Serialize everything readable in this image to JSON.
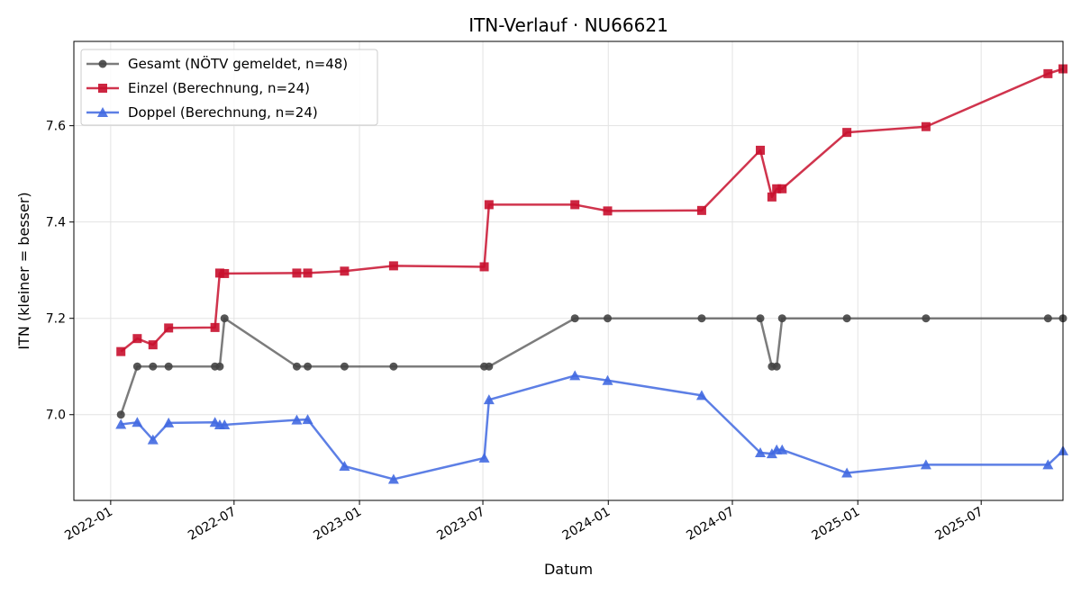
{
  "chart_data": {
    "type": "line",
    "title": "ITN-Verlauf · NU66621",
    "xlabel": "Datum",
    "ylabel": "ITN  (kleiner = besser)",
    "xlim": [
      "2021-11-08",
      "2025-10-29"
    ],
    "ylim": [
      6.822,
      7.775
    ],
    "grid": true,
    "legend_position": "top-left",
    "x_ticks": [
      "2022-01",
      "2022-07",
      "2023-01",
      "2023-07",
      "2024-01",
      "2024-07",
      "2025-01",
      "2025-07"
    ],
    "y_ticks": [
      7.0,
      7.2,
      7.4,
      7.6
    ],
    "series": [
      {
        "name": "Gesamt (NÖTV gemeldet, n=48)",
        "color": "#444444",
        "marker": "circle",
        "points": [
          [
            "2022-01-16",
            7.0
          ],
          [
            "2022-02-09",
            7.1
          ],
          [
            "2022-03-04",
            7.1
          ],
          [
            "2022-03-27",
            7.1
          ],
          [
            "2022-06-03",
            7.1
          ],
          [
            "2022-06-10",
            7.1
          ],
          [
            "2022-06-17",
            7.2
          ],
          [
            "2022-10-01",
            7.1
          ],
          [
            "2022-10-17",
            7.1
          ],
          [
            "2022-12-10",
            7.1
          ],
          [
            "2023-02-20",
            7.1
          ],
          [
            "2023-07-03",
            7.1
          ],
          [
            "2023-07-10",
            7.1
          ],
          [
            "2023-11-13",
            7.2
          ],
          [
            "2023-12-31",
            7.2
          ],
          [
            "2024-05-17",
            7.2
          ],
          [
            "2024-08-11",
            7.2
          ],
          [
            "2024-08-28",
            7.1
          ],
          [
            "2024-09-04",
            7.1
          ],
          [
            "2024-09-12",
            7.2
          ],
          [
            "2024-12-16",
            7.2
          ],
          [
            "2025-04-11",
            7.2
          ],
          [
            "2025-10-07",
            7.2
          ],
          [
            "2025-10-29",
            7.2
          ]
        ]
      },
      {
        "name": "Einzel (Berechnung, n=24)",
        "color": "#c8102e",
        "marker": "square",
        "points": [
          [
            "2022-01-16",
            7.131
          ],
          [
            "2022-02-09",
            7.158
          ],
          [
            "2022-03-04",
            7.145
          ],
          [
            "2022-03-27",
            7.18
          ],
          [
            "2022-06-03",
            7.181
          ],
          [
            "2022-06-10",
            7.294
          ],
          [
            "2022-06-17",
            7.293
          ],
          [
            "2022-10-01",
            7.294
          ],
          [
            "2022-10-17",
            7.294
          ],
          [
            "2022-12-10",
            7.298
          ],
          [
            "2023-02-20",
            7.309
          ],
          [
            "2023-07-03",
            7.307
          ],
          [
            "2023-07-10",
            7.436
          ],
          [
            "2023-11-13",
            7.436
          ],
          [
            "2023-12-31",
            7.423
          ],
          [
            "2024-05-17",
            7.424
          ],
          [
            "2024-08-11",
            7.549
          ],
          [
            "2024-08-28",
            7.452
          ],
          [
            "2024-09-04",
            7.469
          ],
          [
            "2024-09-12",
            7.469
          ],
          [
            "2024-12-16",
            7.586
          ],
          [
            "2025-04-11",
            7.598
          ],
          [
            "2025-10-07",
            7.708
          ],
          [
            "2025-10-29",
            7.718
          ]
        ]
      },
      {
        "name": "Doppel (Berechnung, n=24)",
        "color": "#4169e1",
        "marker": "triangle",
        "points": [
          [
            "2022-01-16",
            6.98
          ],
          [
            "2022-02-09",
            6.984
          ],
          [
            "2022-03-04",
            6.948
          ],
          [
            "2022-03-27",
            6.983
          ],
          [
            "2022-06-03",
            6.984
          ],
          [
            "2022-06-10",
            6.979
          ],
          [
            "2022-06-17",
            6.979
          ],
          [
            "2022-10-01",
            6.989
          ],
          [
            "2022-10-17",
            6.99
          ],
          [
            "2022-12-10",
            6.893
          ],
          [
            "2023-02-20",
            6.866
          ],
          [
            "2023-07-03",
            6.91
          ],
          [
            "2023-07-10",
            7.031
          ],
          [
            "2023-11-13",
            7.081
          ],
          [
            "2023-12-31",
            7.071
          ],
          [
            "2024-05-17",
            7.04
          ],
          [
            "2024-08-11",
            6.921
          ],
          [
            "2024-08-28",
            6.919
          ],
          [
            "2024-09-04",
            6.927
          ],
          [
            "2024-09-12",
            6.927
          ],
          [
            "2024-12-16",
            6.879
          ],
          [
            "2025-04-11",
            6.896
          ],
          [
            "2025-10-07",
            6.896
          ],
          [
            "2025-10-29",
            6.925
          ]
        ]
      }
    ]
  }
}
